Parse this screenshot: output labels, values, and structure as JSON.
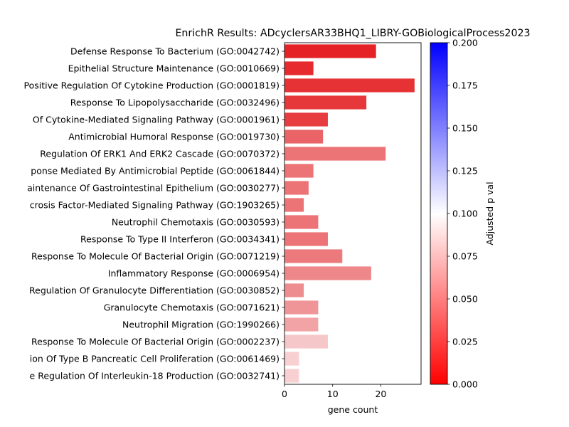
{
  "chart_data": {
    "type": "bar",
    "orientation": "horizontal",
    "title": "EnrichR Results: ADcyclersAR33BHQ1_LIBRY-GOBiologicalProcess2023",
    "xlabel": "gene count",
    "ylabel": "",
    "xlim": [
      0,
      28.35
    ],
    "x_ticks": [
      0,
      10,
      20
    ],
    "categories": [
      "Defense Response To Bacterium (GO:0042742)",
      "Epithelial Structure Maintenance (GO:0010669)",
      "Positive Regulation Of Cytokine Production (GO:0001819)",
      "Response To Lipopolysaccharide (GO:0032496)",
      "Of Cytokine-Mediated Signaling Pathway (GO:0001961)",
      "Antimicrobial Humoral Response (GO:0019730)",
      "Regulation Of ERK1 And ERK2 Cascade (GO:0070372)",
      "ponse Mediated By Antimicrobial Peptide (GO:0061844)",
      "aintenance Of Gastrointestinal Epithelium (GO:0030277)",
      "crosis Factor-Mediated Signaling Pathway (GO:1903265)",
      "Neutrophil Chemotaxis (GO:0030593)",
      "Response To Type II Interferon (GO:0034341)",
      "Response To Molecule Of Bacterial Origin (GO:0071219)",
      "Inflammatory Response (GO:0006954)",
      "Regulation Of Granulocyte Differentiation (GO:0030852)",
      "Granulocyte Chemotaxis (GO:0071621)",
      "Neutrophil Migration (GO:1990266)",
      "Response To Molecule Of Bacterial Origin (GO:0002237)",
      "ion Of Type B Pancreatic Cell Proliferation (GO:0061469)",
      "e Regulation Of Interleukin-18 Production (GO:0032741)"
    ],
    "values": [
      19,
      6,
      27,
      17,
      9,
      8,
      21,
      6,
      5,
      4,
      7,
      9,
      12,
      18,
      4,
      7,
      7,
      9,
      3,
      3
    ],
    "bar_colors": [
      "#e52327",
      "#e62a2e",
      "#e63135",
      "#e6373b",
      "#e73d41",
      "#ea6467",
      "#ec7376",
      "#ec7376",
      "#ec7376",
      "#ec7376",
      "#ec7376",
      "#ec7376",
      "#ec7a7d",
      "#ee878a",
      "#ee8d8f",
      "#ef9597",
      "#f1a3a5",
      "#f6c7c8",
      "#f8d0d1",
      "#f8d0d1"
    ],
    "colorbar": {
      "label": "Adjusted p val",
      "range": [
        0,
        0.2
      ],
      "ticks": [
        "0.000",
        "0.025",
        "0.050",
        "0.075",
        "0.100",
        "0.125",
        "0.150",
        "0.175",
        "0.200"
      ],
      "colors": [
        "#ff0000",
        "#ffffff",
        "#0000ff"
      ]
    },
    "grid": false,
    "legend": "none"
  }
}
